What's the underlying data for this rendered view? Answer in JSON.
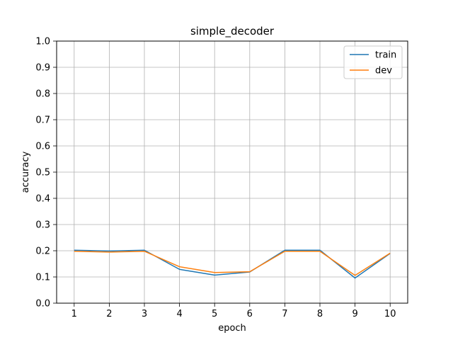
{
  "chart_data": {
    "type": "line",
    "title": "simple_decoder",
    "xlabel": "epoch",
    "ylabel": "accuracy",
    "x": [
      1,
      2,
      3,
      4,
      5,
      6,
      7,
      8,
      9,
      10
    ],
    "xlim": [
      0.5,
      10.5
    ],
    "ylim": [
      0.0,
      1.0
    ],
    "xticks": [
      "1",
      "2",
      "3",
      "4",
      "5",
      "6",
      "7",
      "8",
      "9",
      "10"
    ],
    "yticks": [
      "0.0",
      "0.1",
      "0.2",
      "0.3",
      "0.4",
      "0.5",
      "0.6",
      "0.7",
      "0.8",
      "0.9",
      "1.0"
    ],
    "grid": true,
    "legend_position": "top-right",
    "series": [
      {
        "name": "train",
        "color": "#1f77b4",
        "values": [
          0.202,
          0.199,
          0.202,
          0.129,
          0.107,
          0.119,
          0.202,
          0.202,
          0.096,
          0.19
        ]
      },
      {
        "name": "dev",
        "color": "#ff7f0e",
        "values": [
          0.198,
          0.195,
          0.198,
          0.139,
          0.117,
          0.12,
          0.198,
          0.198,
          0.106,
          0.191
        ]
      }
    ]
  }
}
